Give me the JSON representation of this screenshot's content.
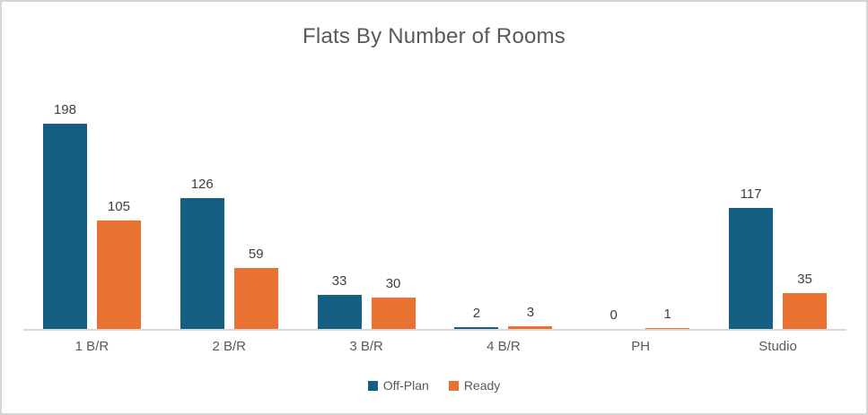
{
  "chart_data": {
    "type": "bar",
    "title": "Flats By Number of Rooms",
    "xlabel": "",
    "ylabel": "",
    "categories": [
      "1 B/R",
      "2 B/R",
      "3 B/R",
      "4 B/R",
      "PH",
      "Studio"
    ],
    "series": [
      {
        "name": "Off-Plan",
        "color": "#156082",
        "values": [
          198,
          126,
          33,
          2,
          0,
          117
        ]
      },
      {
        "name": "Ready",
        "color": "#E97132",
        "values": [
          105,
          59,
          30,
          3,
          1,
          35
        ]
      }
    ],
    "ylim": [
      0,
      220
    ],
    "grid": false,
    "axis_labels_visible": false,
    "data_labels": true,
    "legend_position": "bottom"
  },
  "colors": {
    "offplan_series": "#156082",
    "ready_series": "#E97132",
    "title_text": "#595959",
    "category_text": "#595959",
    "data_label_text": "#404040",
    "axis_line": "#D9D9D9",
    "frame_border": "#D5D5D5",
    "background": "#FFFFFF"
  }
}
